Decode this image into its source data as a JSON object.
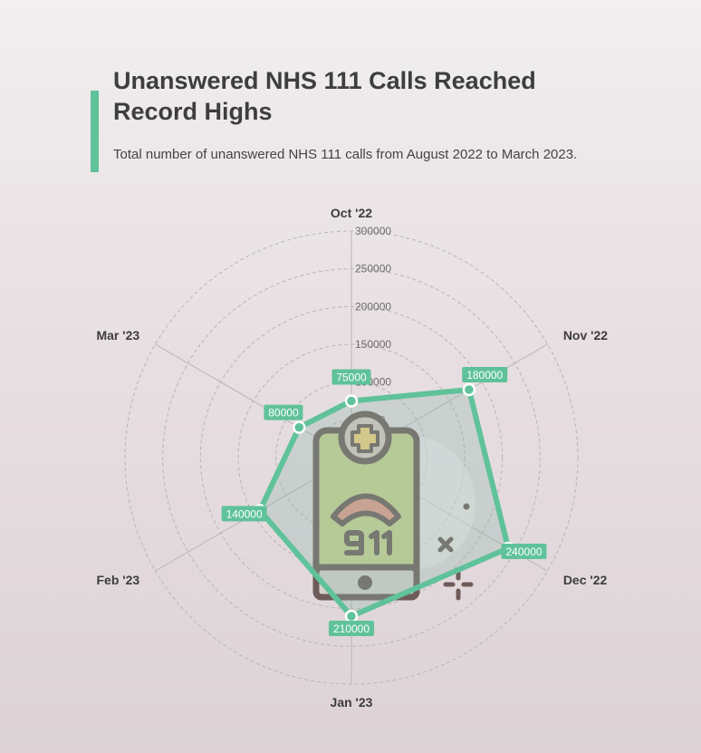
{
  "header": {
    "title": "Unanswered NHS 111 Calls Reached Record Highs",
    "subtitle": "Total number of unanswered NHS 111 calls from August 2022 to March 2023."
  },
  "colors": {
    "accent": "#5fc29a",
    "label_bg": "#5fc29a",
    "grid": "#b9b4b6"
  },
  "icon": "phone-911-medical-icon",
  "chart_data": {
    "type": "radar",
    "title": "",
    "categories": [
      "Oct '22",
      "Nov '22",
      "Dec '22",
      "Jan '23",
      "Feb '23",
      "Mar '23"
    ],
    "series": [
      {
        "values": [
          75000,
          180000,
          240000,
          210000,
          140000,
          80000
        ]
      }
    ],
    "radial_ticks": [
      0,
      50000,
      100000,
      150000,
      200000,
      250000,
      300000
    ],
    "rlim": [
      0,
      300000
    ],
    "grid": true,
    "legend": "none"
  }
}
